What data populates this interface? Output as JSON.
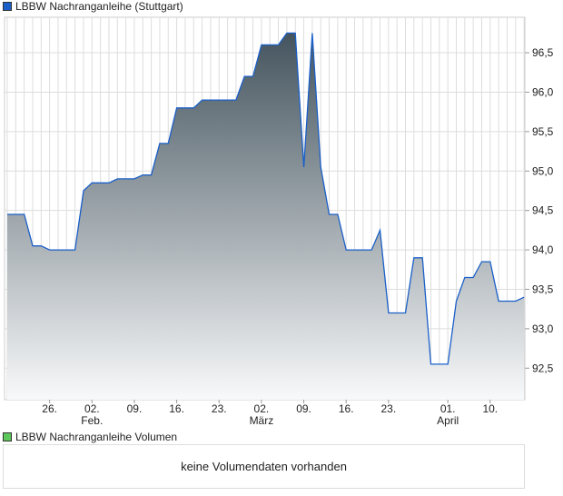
{
  "chart_data": {
    "type": "area",
    "title": "LBBW Nachranganleihe (Stuttgart)",
    "series_color": "#1a5fc8",
    "fill_top": "#44545e",
    "fill_bottom": "#f8f9fa",
    "ylim": [
      92.1,
      96.95
    ],
    "xlim": [
      0,
      61
    ],
    "yticks": [
      {
        "v": 92.5,
        "label": "92,5"
      },
      {
        "v": 93.0,
        "label": "93,0"
      },
      {
        "v": 93.5,
        "label": "93,5"
      },
      {
        "v": 94.0,
        "label": "94,0"
      },
      {
        "v": 94.5,
        "label": "94,5"
      },
      {
        "v": 95.0,
        "label": "95,0"
      },
      {
        "v": 95.5,
        "label": "95,5"
      },
      {
        "v": 96.0,
        "label": "96,0"
      },
      {
        "v": 96.5,
        "label": "96,5"
      }
    ],
    "xticks": [
      {
        "i": 5,
        "label": "26."
      },
      {
        "i": 10,
        "label": "02.",
        "month": "Feb."
      },
      {
        "i": 15,
        "label": "09."
      },
      {
        "i": 20,
        "label": "16."
      },
      {
        "i": 25,
        "label": "23."
      },
      {
        "i": 30,
        "label": "02.",
        "month": "März"
      },
      {
        "i": 35,
        "label": "09."
      },
      {
        "i": 40,
        "label": "16."
      },
      {
        "i": 45,
        "label": "23."
      },
      {
        "i": 52,
        "label": "01.",
        "month": "April"
      },
      {
        "i": 57,
        "label": "10."
      }
    ],
    "points": [
      [
        0,
        94.45
      ],
      [
        2,
        94.45
      ],
      [
        3,
        94.05
      ],
      [
        4,
        94.05
      ],
      [
        5,
        94.0
      ],
      [
        8,
        94.0
      ],
      [
        9,
        94.75
      ],
      [
        10,
        94.85
      ],
      [
        12,
        94.85
      ],
      [
        13,
        94.9
      ],
      [
        15,
        94.9
      ],
      [
        16,
        94.95
      ],
      [
        17,
        94.95
      ],
      [
        18,
        95.35
      ],
      [
        19,
        95.35
      ],
      [
        20,
        95.8
      ],
      [
        22,
        95.8
      ],
      [
        23,
        95.9
      ],
      [
        27,
        95.9
      ],
      [
        28,
        96.2
      ],
      [
        29,
        96.2
      ],
      [
        30,
        96.6
      ],
      [
        32,
        96.6
      ],
      [
        33,
        96.75
      ],
      [
        34,
        96.75
      ],
      [
        35,
        95.05
      ],
      [
        36,
        96.75
      ],
      [
        37,
        95.05
      ],
      [
        38,
        94.45
      ],
      [
        39,
        94.45
      ],
      [
        40,
        94.0
      ],
      [
        43,
        94.0
      ],
      [
        44,
        94.25
      ],
      [
        45,
        93.2
      ],
      [
        47,
        93.2
      ],
      [
        48,
        93.9
      ],
      [
        49,
        93.9
      ],
      [
        50,
        92.55
      ],
      [
        52,
        92.55
      ],
      [
        53,
        93.35
      ],
      [
        54,
        93.65
      ],
      [
        55,
        93.65
      ],
      [
        56,
        93.85
      ],
      [
        57,
        93.85
      ],
      [
        58,
        93.35
      ],
      [
        60,
        93.35
      ],
      [
        61,
        93.4
      ]
    ]
  },
  "volume": {
    "title": "LBBW Nachranganleihe Volumen",
    "swatch_color": "#5cc85c",
    "empty_text": "keine Volumendaten vorhanden"
  }
}
